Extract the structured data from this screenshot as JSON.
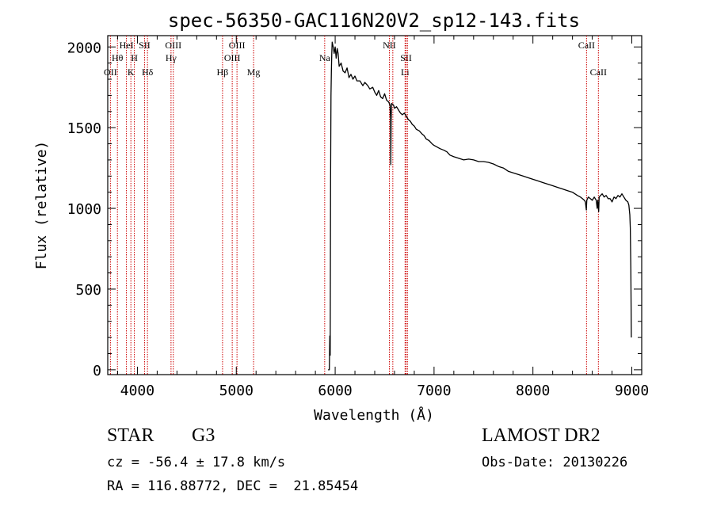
{
  "chart_data": {
    "type": "line",
    "title": "spec-56350-GAC116N20V2_sp12-143.fits",
    "xlabel": "Wavelength (Å)",
    "ylabel": "Flux (relative)",
    "xlim": [
      3700,
      9100
    ],
    "ylim": [
      -30,
      2070
    ],
    "xticks": [
      4000,
      5000,
      6000,
      7000,
      8000,
      9000
    ],
    "yticks": [
      0,
      500,
      1000,
      1500,
      2000
    ],
    "line_color": "#000000",
    "marker_color": "#cc0000",
    "series": [
      {
        "values": [
          [
            5928,
            0
          ],
          [
            5935,
            0
          ],
          [
            5941,
            0
          ],
          [
            5946,
            210
          ],
          [
            5950,
            90
          ],
          [
            5954,
            1180
          ],
          [
            5958,
            1700
          ],
          [
            5962,
            1850
          ],
          [
            5966,
            1960
          ],
          [
            5970,
            2030
          ],
          [
            5980,
            2000
          ],
          [
            5990,
            1960
          ],
          [
            6000,
            2000
          ],
          [
            6010,
            1930
          ],
          [
            6020,
            1990
          ],
          [
            6030,
            1960
          ],
          [
            6040,
            1880
          ],
          [
            6060,
            1900
          ],
          [
            6080,
            1850
          ],
          [
            6100,
            1840
          ],
          [
            6120,
            1870
          ],
          [
            6140,
            1810
          ],
          [
            6160,
            1830
          ],
          [
            6180,
            1800
          ],
          [
            6200,
            1820
          ],
          [
            6220,
            1790
          ],
          [
            6250,
            1790
          ],
          [
            6280,
            1760
          ],
          [
            6300,
            1780
          ],
          [
            6330,
            1760
          ],
          [
            6350,
            1740
          ],
          [
            6380,
            1750
          ],
          [
            6400,
            1720
          ],
          [
            6420,
            1700
          ],
          [
            6440,
            1730
          ],
          [
            6460,
            1690
          ],
          [
            6480,
            1680
          ],
          [
            6500,
            1710
          ],
          [
            6520,
            1670
          ],
          [
            6540,
            1660
          ],
          [
            6555,
            1640
          ],
          [
            6560,
            1560
          ],
          [
            6563,
            1270
          ],
          [
            6566,
            1540
          ],
          [
            6570,
            1650
          ],
          [
            6590,
            1640
          ],
          [
            6600,
            1620
          ],
          [
            6620,
            1630
          ],
          [
            6640,
            1610
          ],
          [
            6660,
            1590
          ],
          [
            6680,
            1580
          ],
          [
            6700,
            1590
          ],
          [
            6720,
            1570
          ],
          [
            6740,
            1550
          ],
          [
            6760,
            1540
          ],
          [
            6780,
            1520
          ],
          [
            6800,
            1510
          ],
          [
            6820,
            1490
          ],
          [
            6850,
            1480
          ],
          [
            6880,
            1460
          ],
          [
            6900,
            1450
          ],
          [
            6920,
            1430
          ],
          [
            6950,
            1420
          ],
          [
            6980,
            1400
          ],
          [
            7000,
            1390
          ],
          [
            7030,
            1380
          ],
          [
            7060,
            1370
          ],
          [
            7100,
            1360
          ],
          [
            7130,
            1350
          ],
          [
            7160,
            1330
          ],
          [
            7200,
            1320
          ],
          [
            7250,
            1310
          ],
          [
            7300,
            1300
          ],
          [
            7350,
            1305
          ],
          [
            7400,
            1300
          ],
          [
            7450,
            1290
          ],
          [
            7500,
            1290
          ],
          [
            7550,
            1285
          ],
          [
            7600,
            1275
          ],
          [
            7650,
            1260
          ],
          [
            7700,
            1250
          ],
          [
            7750,
            1230
          ],
          [
            7800,
            1220
          ],
          [
            7850,
            1210
          ],
          [
            7900,
            1200
          ],
          [
            7950,
            1190
          ],
          [
            8000,
            1180
          ],
          [
            8050,
            1170
          ],
          [
            8100,
            1160
          ],
          [
            8150,
            1150
          ],
          [
            8200,
            1140
          ],
          [
            8250,
            1130
          ],
          [
            8300,
            1120
          ],
          [
            8350,
            1110
          ],
          [
            8400,
            1100
          ],
          [
            8450,
            1080
          ],
          [
            8480,
            1070
          ],
          [
            8500,
            1060
          ],
          [
            8520,
            1050
          ],
          [
            8530,
            1040
          ],
          [
            8540,
            990
          ],
          [
            8545,
            1050
          ],
          [
            8560,
            1070
          ],
          [
            8580,
            1060
          ],
          [
            8600,
            1050
          ],
          [
            8620,
            1070
          ],
          [
            8640,
            1050
          ],
          [
            8650,
            1000
          ],
          [
            8655,
            1050
          ],
          [
            8665,
            980
          ],
          [
            8670,
            1070
          ],
          [
            8700,
            1090
          ],
          [
            8720,
            1070
          ],
          [
            8740,
            1080
          ],
          [
            8760,
            1060
          ],
          [
            8780,
            1060
          ],
          [
            8800,
            1040
          ],
          [
            8820,
            1070
          ],
          [
            8840,
            1060
          ],
          [
            8860,
            1080
          ],
          [
            8880,
            1070
          ],
          [
            8900,
            1090
          ],
          [
            8920,
            1070
          ],
          [
            8940,
            1050
          ],
          [
            8960,
            1040
          ],
          [
            8970,
            1020
          ],
          [
            8980,
            960
          ],
          [
            8985,
            880
          ],
          [
            8990,
            620
          ],
          [
            8995,
            200
          ]
        ]
      }
    ],
    "line_markers": [
      {
        "x": 3727,
        "label": "OII",
        "row": 3
      },
      {
        "x": 3798,
        "label": "Hθ",
        "row": 2
      },
      {
        "x": 3889,
        "label": "HeI",
        "row": 1
      },
      {
        "x": 3934,
        "label": "K",
        "row": 3
      },
      {
        "x": 3969,
        "label": "H",
        "row": 2
      },
      {
        "x": 4072,
        "label": "SII",
        "row": 1
      },
      {
        "x": 4102,
        "label": "Hδ",
        "row": 3
      },
      {
        "x": 4340,
        "label": "Hγ",
        "row": 2
      },
      {
        "x": 4363,
        "label": "OIII",
        "row": 1
      },
      {
        "x": 4861,
        "label": "Hβ",
        "row": 3
      },
      {
        "x": 4959,
        "label": "OIII",
        "row": 2
      },
      {
        "x": 5007,
        "label": "OIII",
        "row": 1
      },
      {
        "x": 5175,
        "label": "Mg",
        "row": 3
      },
      {
        "x": 5894,
        "label": "Na",
        "row": 2
      },
      {
        "x": 6548,
        "label": "NII",
        "row": 1
      },
      {
        "x": 6583,
        "label": "",
        "row": 1
      },
      {
        "x": 6707,
        "label": "Li",
        "row": 3
      },
      {
        "x": 6717,
        "label": "SII",
        "row": 2
      },
      {
        "x": 6731,
        "label": "",
        "row": 2
      },
      {
        "x": 8542,
        "label": "CaII",
        "row": 1
      },
      {
        "x": 8662,
        "label": "CaII",
        "row": 3
      }
    ]
  },
  "info": {
    "class": "STAR",
    "subclass": "G3",
    "survey": "LAMOST DR2",
    "cz": "cz = -56.4 ± 17.8 km/s",
    "obs_date": "Obs-Date: 20130226",
    "coords": "RA = 116.88772, DEC =  21.85454"
  }
}
